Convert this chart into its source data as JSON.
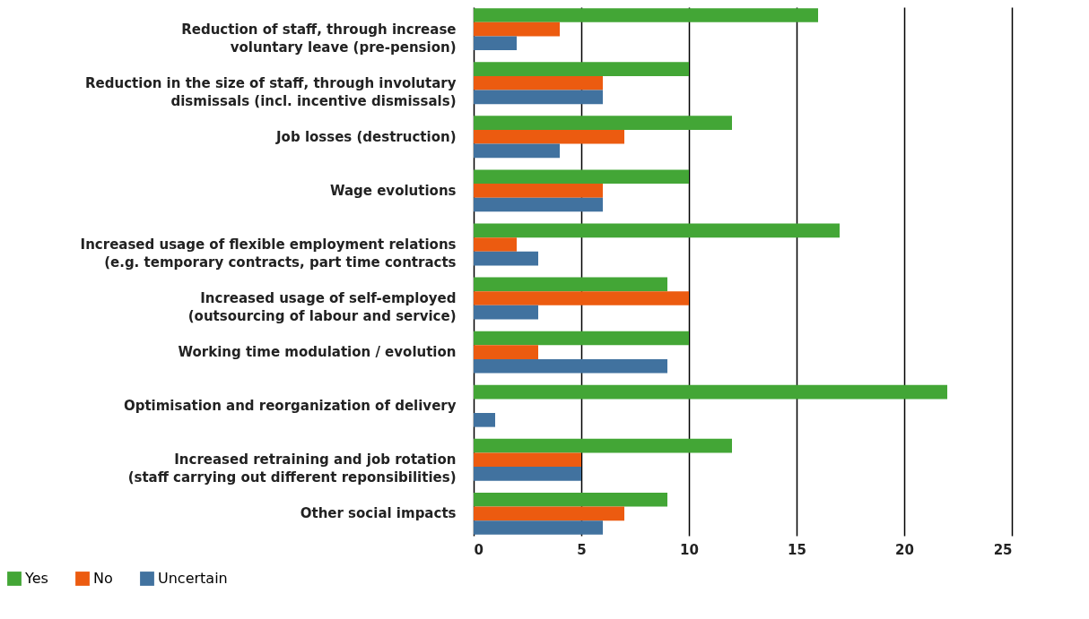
{
  "chart_data": {
    "type": "bar",
    "orientation": "horizontal",
    "categories": [
      "Reduction of staff, through increase\nvoluntary leave (pre-pension)",
      "Reduction in the size of staff, through involutary\ndismissals (incl. incentive dismissals)",
      "Job losses (destruction)",
      "Wage evolutions",
      "Increased usage of flexible employment relations\n(e.g. temporary contracts, part time contracts",
      "Increased usage of self-employed\n(outsourcing of labour and service)",
      "Working time modulation / evolution",
      "Optimisation and reorganization of delivery",
      "Increased retraining and job rotation\n(staff carrying out different reponsibilities)",
      "Other social impacts"
    ],
    "series": [
      {
        "name": "Yes",
        "color": "#43a636",
        "values": [
          16,
          10,
          12,
          10,
          17,
          9,
          10,
          22,
          12,
          9
        ]
      },
      {
        "name": "No",
        "color": "#ec5b10",
        "values": [
          4,
          6,
          7,
          6,
          2,
          10,
          3,
          null,
          5,
          7
        ]
      },
      {
        "name": "Uncertain",
        "color": "#41729f",
        "values": [
          2,
          6,
          4,
          6,
          3,
          3,
          9,
          1,
          5,
          6
        ]
      }
    ],
    "xlim": [
      0,
      25
    ],
    "xticks": [
      0,
      5,
      10,
      15,
      20,
      25
    ],
    "grid": "x",
    "legend": "bottom left"
  }
}
